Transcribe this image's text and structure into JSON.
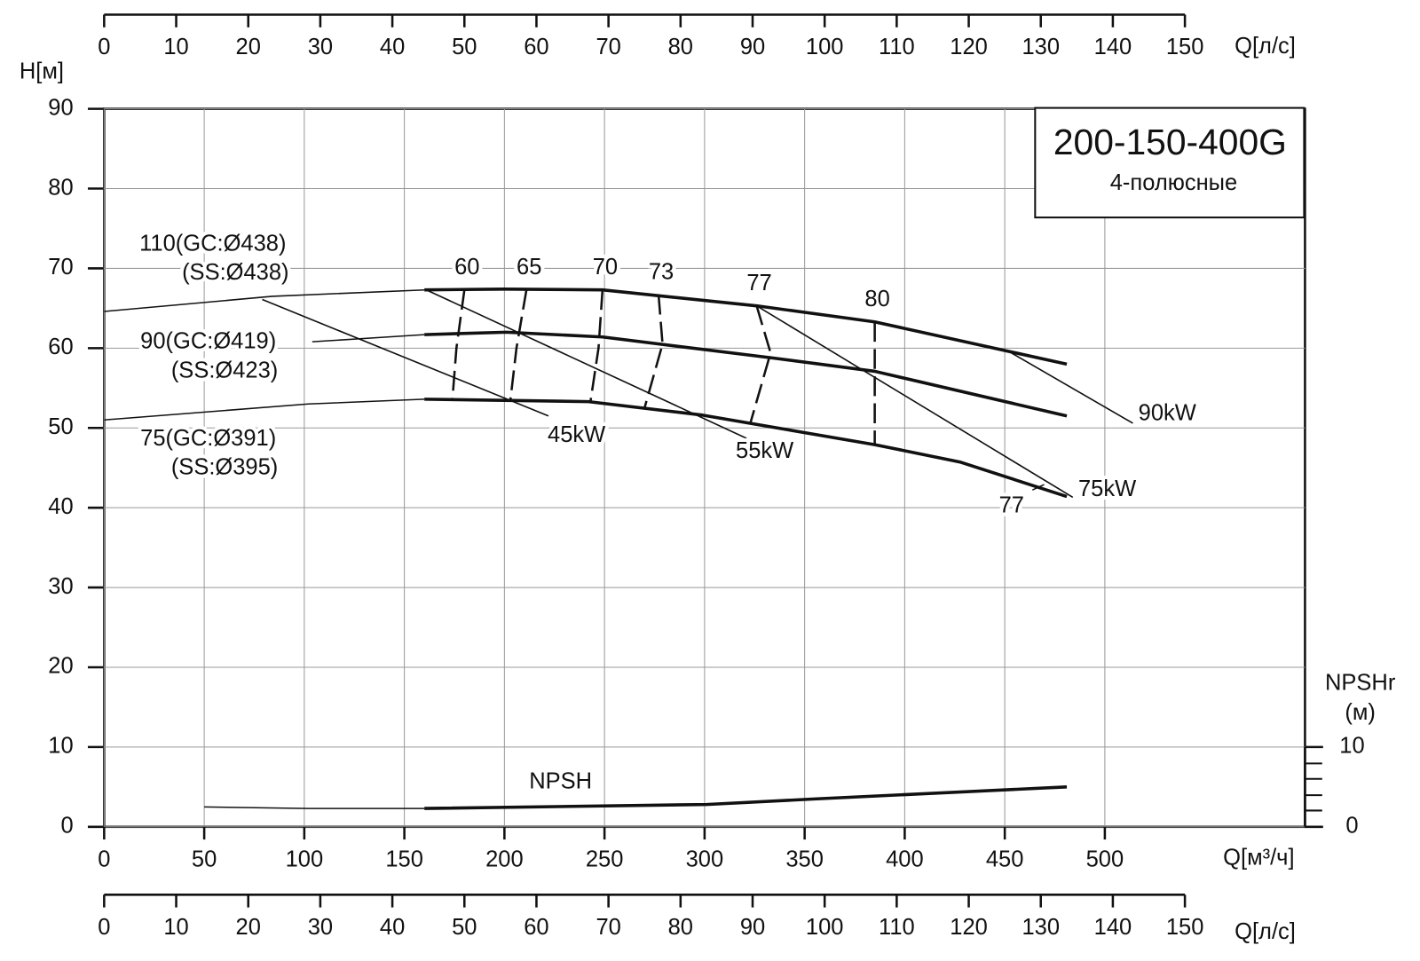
{
  "chart_data": {
    "type": "pump_curve",
    "title": "200-150-400G",
    "subtitle": "4-полюсные",
    "y_label": "H[м]",
    "x_label": "Q[м³/ч]",
    "x2_label": "Q[л/с]",
    "y2_label": "NPSHr",
    "y2_unit": "(м)",
    "xlim": [
      0,
      600
    ],
    "xticks": [
      0,
      50,
      100,
      150,
      200,
      250,
      300,
      350,
      400,
      450,
      500
    ],
    "ylim": [
      0,
      90
    ],
    "yticks": [
      0,
      10,
      20,
      30,
      40,
      50,
      60,
      70,
      80,
      90
    ],
    "x2lim": [
      0,
      150
    ],
    "x2ticks": [
      0,
      10,
      20,
      30,
      40,
      50,
      60,
      70,
      80,
      90,
      100,
      110,
      120,
      130,
      140,
      150
    ],
    "y2lim": [
      0,
      10
    ],
    "y2ticks": [
      0,
      10
    ],
    "grid": true,
    "series": [
      {
        "name": "110(GC:Ø438)",
        "name2": "(SS:Ø438)",
        "color": "#111111",
        "ext_x": [
          0,
          84,
          160
        ],
        "ext_values": [
          64.6,
          66.5,
          67.3
        ],
        "x": [
          160,
          200,
          249,
          326,
          385,
          452,
          481
        ],
        "values": [
          67.3,
          67.4,
          67.3,
          65.3,
          63.3,
          59.6,
          58.0
        ]
      },
      {
        "name": "90(GC:Ø419)",
        "name2": "(SS:Ø423)",
        "color": "#111111",
        "ext_x": [
          104,
          160
        ],
        "ext_values": [
          60.8,
          61.7
        ],
        "x": [
          160,
          201,
          249,
          333,
          385,
          481
        ],
        "values": [
          61.7,
          62.0,
          61.4,
          58.8,
          57.1,
          51.5
        ]
      },
      {
        "name": "75(GC:Ø391)",
        "name2": "(SS:Ø395)",
        "color": "#111111",
        "ext_x": [
          0,
          102,
          160
        ],
        "ext_values": [
          51.0,
          53.0,
          53.6
        ],
        "x": [
          160,
          242,
          299,
          385,
          428,
          481
        ],
        "values": [
          53.6,
          53.3,
          51.6,
          47.9,
          45.7,
          41.4
        ]
      },
      {
        "name": "NPSH",
        "color": "#111111",
        "axis": "y2",
        "ext_x": [
          50,
          102,
          160
        ],
        "ext_values": [
          2.5,
          2.3,
          2.3
        ],
        "x": [
          160,
          301,
          355,
          481
        ],
        "values": [
          2.3,
          2.8,
          3.5,
          5.0
        ]
      }
    ],
    "efficiency": [
      {
        "label": "60",
        "x": [
          180,
          176,
          174
        ],
        "values": [
          67.3,
          60,
          53.5
        ]
      },
      {
        "label": "65",
        "x": [
          211,
          206,
          203
        ],
        "values": [
          67.3,
          60,
          53.5
        ]
      },
      {
        "label": "70",
        "x": [
          249,
          247,
          243
        ],
        "values": [
          67.3,
          60,
          53.3
        ]
      },
      {
        "label": "73",
        "x": [
          277,
          279,
          270
        ],
        "values": [
          66.7,
          60.5,
          52.5
        ]
      },
      {
        "label": "77",
        "x": [
          326,
          333,
          323
        ],
        "values": [
          65.3,
          59.4,
          50.7
        ]
      },
      {
        "label": "80",
        "x": [
          385,
          385
        ],
        "values": [
          63.3,
          47.8
        ]
      }
    ],
    "efficiency_note": "77",
    "power": [
      {
        "label": "45kW",
        "x": [
          79,
          222
        ],
        "values": [
          66.1,
          51.5
        ]
      },
      {
        "label": "55kW",
        "x": [
          161,
          321
        ],
        "values": [
          67.3,
          48.7
        ]
      },
      {
        "label": "75kW",
        "x": [
          326,
          484
        ],
        "values": [
          65.3,
          41.3
        ]
      },
      {
        "label": "90kW",
        "x": [
          452,
          514
        ],
        "values": [
          59.6,
          50.6
        ]
      }
    ]
  }
}
